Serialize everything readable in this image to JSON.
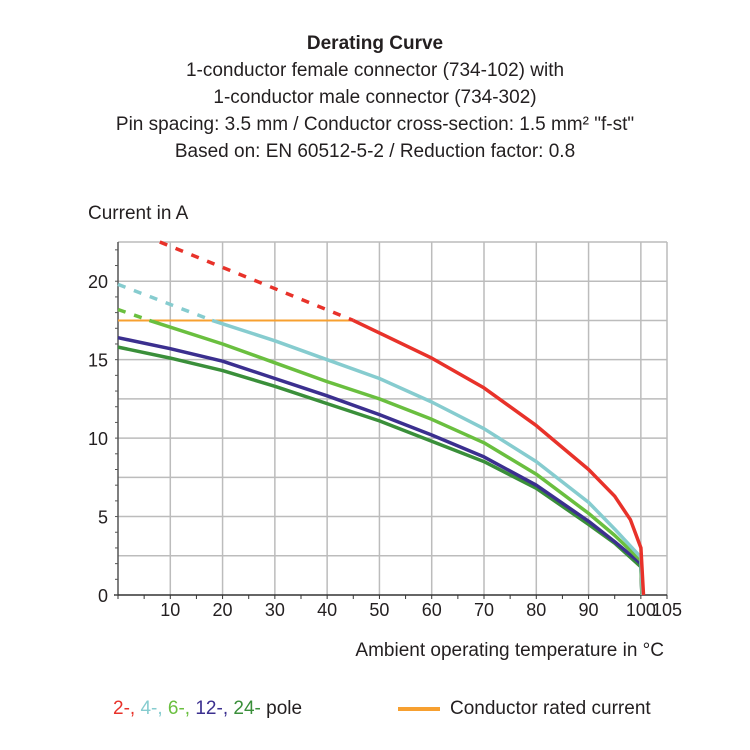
{
  "title_lines": [
    "Derating Curve",
    "1-conductor female connector (734-102) with",
    "1-conductor male connector (734-302)",
    "Pin spacing: 3.5 mm / Conductor cross-section: 1.5 mm² \"f-st\"",
    "Based on: EN 60512-5-2 / Reduction factor: 0.8"
  ],
  "chart_data": {
    "type": "line",
    "title": "Derating Curve",
    "xlabel": "Ambient operating temperature in °C",
    "ylabel": "Current in A",
    "xlim": [
      0,
      105
    ],
    "ylim": [
      0,
      22.5
    ],
    "xticks": [
      10,
      20,
      30,
      40,
      50,
      60,
      70,
      80,
      90,
      100,
      105
    ],
    "yticks": [
      0,
      5,
      10,
      15,
      20
    ],
    "grid": true,
    "rated_current": {
      "name": "Conductor rated current",
      "value": 17.5,
      "x": [
        0,
        45
      ],
      "color": "#f7a030"
    },
    "series": [
      {
        "name": "2-",
        "color": "#e8322a",
        "dashed": [
          [
            8,
            22.5
          ],
          [
            45,
            17.5
          ]
        ],
        "points": [
          [
            45,
            17.5
          ],
          [
            60,
            15.1
          ],
          [
            70,
            13.2
          ],
          [
            80,
            10.8
          ],
          [
            90,
            8.0
          ],
          [
            95,
            6.3
          ],
          [
            98,
            4.8
          ],
          [
            100,
            3.0
          ],
          [
            100.5,
            0
          ]
        ]
      },
      {
        "name": "4-",
        "color": "#86cccf",
        "dashed": [
          [
            0,
            19.8
          ],
          [
            18,
            17.5
          ]
        ],
        "points": [
          [
            18,
            17.5
          ],
          [
            30,
            16.2
          ],
          [
            40,
            15.0
          ],
          [
            50,
            13.8
          ],
          [
            60,
            12.3
          ],
          [
            70,
            10.6
          ],
          [
            80,
            8.5
          ],
          [
            90,
            5.9
          ],
          [
            95,
            4.2
          ],
          [
            100,
            2.4
          ],
          [
            100.3,
            0
          ]
        ]
      },
      {
        "name": "6-",
        "color": "#6abf3f",
        "dashed": [
          [
            0,
            18.2
          ],
          [
            6,
            17.5
          ]
        ],
        "points": [
          [
            6,
            17.5
          ],
          [
            20,
            16.0
          ],
          [
            30,
            14.8
          ],
          [
            40,
            13.6
          ],
          [
            50,
            12.5
          ],
          [
            60,
            11.2
          ],
          [
            70,
            9.7
          ],
          [
            80,
            7.7
          ],
          [
            90,
            5.2
          ],
          [
            95,
            3.8
          ],
          [
            100,
            2.2
          ],
          [
            100.2,
            0
          ]
        ]
      },
      {
        "name": "12-",
        "color": "#3b2f8f",
        "dashed": [],
        "points": [
          [
            0,
            16.4
          ],
          [
            10,
            15.7
          ],
          [
            20,
            14.9
          ],
          [
            30,
            13.8
          ],
          [
            40,
            12.7
          ],
          [
            50,
            11.5
          ],
          [
            60,
            10.2
          ],
          [
            70,
            8.8
          ],
          [
            80,
            7.0
          ],
          [
            90,
            4.7
          ],
          [
            95,
            3.4
          ],
          [
            100,
            2.0
          ],
          [
            100.2,
            0
          ]
        ]
      },
      {
        "name": "24-",
        "color": "#3a8f3a",
        "dashed": [],
        "points": [
          [
            0,
            15.8
          ],
          [
            10,
            15.1
          ],
          [
            20,
            14.3
          ],
          [
            30,
            13.3
          ],
          [
            40,
            12.2
          ],
          [
            50,
            11.1
          ],
          [
            60,
            9.8
          ],
          [
            70,
            8.5
          ],
          [
            80,
            6.8
          ],
          [
            90,
            4.5
          ],
          [
            95,
            3.3
          ],
          [
            100,
            1.8
          ],
          [
            100.2,
            0
          ]
        ]
      }
    ]
  },
  "legend": {
    "pole_suffix": " pole",
    "rated_label": "Conductor rated current"
  }
}
